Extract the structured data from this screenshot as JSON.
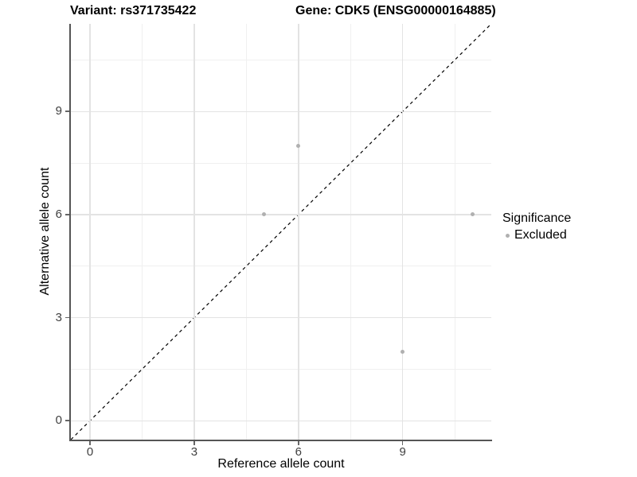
{
  "chart_data": {
    "type": "scatter",
    "titles": {
      "variant": "Variant: rs371735422",
      "gene": "Gene: CDK5 (ENSG00000164885)"
    },
    "xlabel": "Reference allele count",
    "ylabel": "Alternative allele count",
    "xlim": [
      -0.55,
      11.55
    ],
    "ylim": [
      -0.55,
      11.55
    ],
    "x_major_ticks": [
      0,
      3,
      6,
      9
    ],
    "y_major_ticks": [
      0,
      3,
      6,
      9
    ],
    "x_minor_ticks": [
      1.5,
      4.5,
      7.5,
      10.5
    ],
    "y_minor_ticks": [
      1.5,
      4.5,
      7.5,
      10.5
    ],
    "grid": true,
    "series": [
      {
        "name": "Excluded",
        "color": "#b0b0b0",
        "points": [
          {
            "x": 5,
            "y": 6
          },
          {
            "x": 6,
            "y": 8
          },
          {
            "x": 9,
            "y": 2
          },
          {
            "x": 11,
            "y": 6
          }
        ]
      }
    ],
    "identity_line": {
      "x1": -0.55,
      "y1": -0.55,
      "x2": 11.55,
      "y2": 11.55,
      "style": "dashed",
      "color": "#000000"
    },
    "legend": {
      "title": "Significance",
      "position": "right",
      "items": [
        {
          "label": "Excluded",
          "color": "#b0b0b0"
        }
      ]
    },
    "colors": {
      "background": "#ffffff",
      "major_grid": "#e3e3e3",
      "minor_grid": "#f0f0f0",
      "axis_line": "#555555",
      "tick": "#666666",
      "tick_label": "#404040",
      "point": "#b0b0b0"
    }
  }
}
